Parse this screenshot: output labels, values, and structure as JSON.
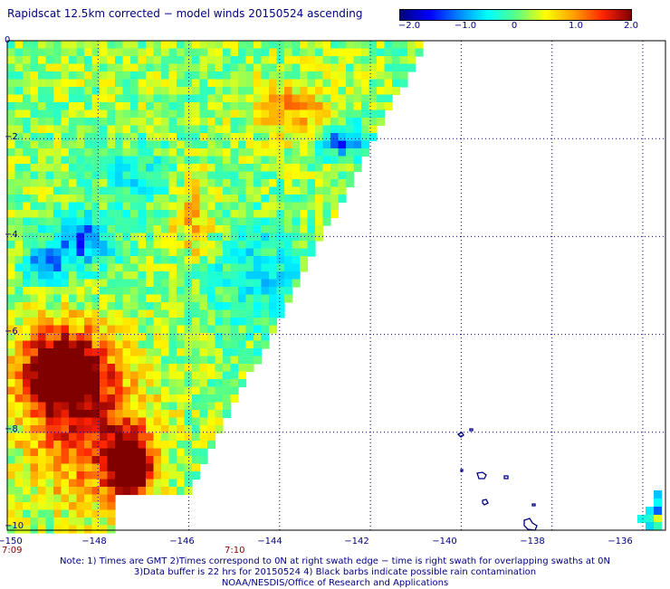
{
  "title": "Rapidscat 12.5km corrected − model winds 20150524 ascending",
  "colorbar": {
    "labels": [
      "−2.0",
      "−1.0",
      "0",
      "1.0",
      "2.0"
    ],
    "colors": [
      "#000080",
      "#0000ff",
      "#00a0ff",
      "#00ffff",
      "#55ff88",
      "#ffff00",
      "#ff9900",
      "#ff2200",
      "#800000"
    ]
  },
  "latitude_labels": [
    "0",
    "−2",
    "−4",
    "−6",
    "−8",
    "−10"
  ],
  "longitude_labels": [
    "−150",
    "−148",
    "−146",
    "−144",
    "−142",
    "−140",
    "−138",
    "−136"
  ],
  "time_labels": [
    "7:09",
    "7:10"
  ],
  "notes": [
    "Note: 1) Times are GMT 2)Times correspond to 0N at right swath edge − time is right swath for overlapping swaths at 0N",
    "3)Data buffer is 22 hrs for 20150524 4) Black barbs indicate possible rain contamination",
    "NOAA/NESDIS/Office of Research and Applications"
  ],
  "map_data": {
    "lon_range": [
      -150,
      -135.5
    ],
    "lat_range": [
      -10,
      0
    ],
    "grid_lines": "dotted",
    "swath_edge": {
      "top_lon": -140.9,
      "bottom_lon": -146.6
    },
    "islands": "Marquesas"
  }
}
